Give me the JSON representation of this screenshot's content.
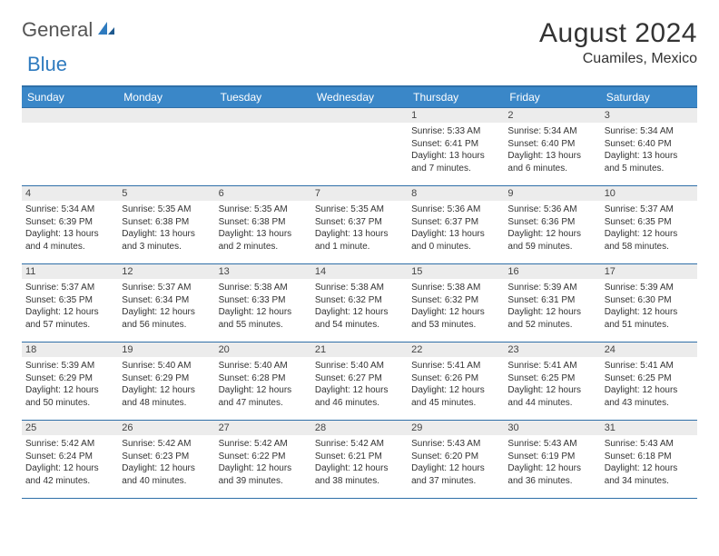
{
  "brand": {
    "part1": "General",
    "part2": "Blue"
  },
  "title": "August 2024",
  "location": "Cuamiles, Mexico",
  "colors": {
    "header_bg": "#3a87c8",
    "header_border": "#2f6fa8",
    "daynum_bg": "#ececec",
    "text": "#333333",
    "brand_blue": "#2f7bbf"
  },
  "fonts": {
    "title_size_pt": 22,
    "location_size_pt": 12,
    "header_size_pt": 9,
    "cell_size_pt": 7.5
  },
  "day_headers": [
    "Sunday",
    "Monday",
    "Tuesday",
    "Wednesday",
    "Thursday",
    "Friday",
    "Saturday"
  ],
  "weeks": [
    [
      {
        "n": "",
        "sr": "",
        "ss": "",
        "dl": ""
      },
      {
        "n": "",
        "sr": "",
        "ss": "",
        "dl": ""
      },
      {
        "n": "",
        "sr": "",
        "ss": "",
        "dl": ""
      },
      {
        "n": "",
        "sr": "",
        "ss": "",
        "dl": ""
      },
      {
        "n": "1",
        "sr": "Sunrise: 5:33 AM",
        "ss": "Sunset: 6:41 PM",
        "dl": "Daylight: 13 hours and 7 minutes."
      },
      {
        "n": "2",
        "sr": "Sunrise: 5:34 AM",
        "ss": "Sunset: 6:40 PM",
        "dl": "Daylight: 13 hours and 6 minutes."
      },
      {
        "n": "3",
        "sr": "Sunrise: 5:34 AM",
        "ss": "Sunset: 6:40 PM",
        "dl": "Daylight: 13 hours and 5 minutes."
      }
    ],
    [
      {
        "n": "4",
        "sr": "Sunrise: 5:34 AM",
        "ss": "Sunset: 6:39 PM",
        "dl": "Daylight: 13 hours and 4 minutes."
      },
      {
        "n": "5",
        "sr": "Sunrise: 5:35 AM",
        "ss": "Sunset: 6:38 PM",
        "dl": "Daylight: 13 hours and 3 minutes."
      },
      {
        "n": "6",
        "sr": "Sunrise: 5:35 AM",
        "ss": "Sunset: 6:38 PM",
        "dl": "Daylight: 13 hours and 2 minutes."
      },
      {
        "n": "7",
        "sr": "Sunrise: 5:35 AM",
        "ss": "Sunset: 6:37 PM",
        "dl": "Daylight: 13 hours and 1 minute."
      },
      {
        "n": "8",
        "sr": "Sunrise: 5:36 AM",
        "ss": "Sunset: 6:37 PM",
        "dl": "Daylight: 13 hours and 0 minutes."
      },
      {
        "n": "9",
        "sr": "Sunrise: 5:36 AM",
        "ss": "Sunset: 6:36 PM",
        "dl": "Daylight: 12 hours and 59 minutes."
      },
      {
        "n": "10",
        "sr": "Sunrise: 5:37 AM",
        "ss": "Sunset: 6:35 PM",
        "dl": "Daylight: 12 hours and 58 minutes."
      }
    ],
    [
      {
        "n": "11",
        "sr": "Sunrise: 5:37 AM",
        "ss": "Sunset: 6:35 PM",
        "dl": "Daylight: 12 hours and 57 minutes."
      },
      {
        "n": "12",
        "sr": "Sunrise: 5:37 AM",
        "ss": "Sunset: 6:34 PM",
        "dl": "Daylight: 12 hours and 56 minutes."
      },
      {
        "n": "13",
        "sr": "Sunrise: 5:38 AM",
        "ss": "Sunset: 6:33 PM",
        "dl": "Daylight: 12 hours and 55 minutes."
      },
      {
        "n": "14",
        "sr": "Sunrise: 5:38 AM",
        "ss": "Sunset: 6:32 PM",
        "dl": "Daylight: 12 hours and 54 minutes."
      },
      {
        "n": "15",
        "sr": "Sunrise: 5:38 AM",
        "ss": "Sunset: 6:32 PM",
        "dl": "Daylight: 12 hours and 53 minutes."
      },
      {
        "n": "16",
        "sr": "Sunrise: 5:39 AM",
        "ss": "Sunset: 6:31 PM",
        "dl": "Daylight: 12 hours and 52 minutes."
      },
      {
        "n": "17",
        "sr": "Sunrise: 5:39 AM",
        "ss": "Sunset: 6:30 PM",
        "dl": "Daylight: 12 hours and 51 minutes."
      }
    ],
    [
      {
        "n": "18",
        "sr": "Sunrise: 5:39 AM",
        "ss": "Sunset: 6:29 PM",
        "dl": "Daylight: 12 hours and 50 minutes."
      },
      {
        "n": "19",
        "sr": "Sunrise: 5:40 AM",
        "ss": "Sunset: 6:29 PM",
        "dl": "Daylight: 12 hours and 48 minutes."
      },
      {
        "n": "20",
        "sr": "Sunrise: 5:40 AM",
        "ss": "Sunset: 6:28 PM",
        "dl": "Daylight: 12 hours and 47 minutes."
      },
      {
        "n": "21",
        "sr": "Sunrise: 5:40 AM",
        "ss": "Sunset: 6:27 PM",
        "dl": "Daylight: 12 hours and 46 minutes."
      },
      {
        "n": "22",
        "sr": "Sunrise: 5:41 AM",
        "ss": "Sunset: 6:26 PM",
        "dl": "Daylight: 12 hours and 45 minutes."
      },
      {
        "n": "23",
        "sr": "Sunrise: 5:41 AM",
        "ss": "Sunset: 6:25 PM",
        "dl": "Daylight: 12 hours and 44 minutes."
      },
      {
        "n": "24",
        "sr": "Sunrise: 5:41 AM",
        "ss": "Sunset: 6:25 PM",
        "dl": "Daylight: 12 hours and 43 minutes."
      }
    ],
    [
      {
        "n": "25",
        "sr": "Sunrise: 5:42 AM",
        "ss": "Sunset: 6:24 PM",
        "dl": "Daylight: 12 hours and 42 minutes."
      },
      {
        "n": "26",
        "sr": "Sunrise: 5:42 AM",
        "ss": "Sunset: 6:23 PM",
        "dl": "Daylight: 12 hours and 40 minutes."
      },
      {
        "n": "27",
        "sr": "Sunrise: 5:42 AM",
        "ss": "Sunset: 6:22 PM",
        "dl": "Daylight: 12 hours and 39 minutes."
      },
      {
        "n": "28",
        "sr": "Sunrise: 5:42 AM",
        "ss": "Sunset: 6:21 PM",
        "dl": "Daylight: 12 hours and 38 minutes."
      },
      {
        "n": "29",
        "sr": "Sunrise: 5:43 AM",
        "ss": "Sunset: 6:20 PM",
        "dl": "Daylight: 12 hours and 37 minutes."
      },
      {
        "n": "30",
        "sr": "Sunrise: 5:43 AM",
        "ss": "Sunset: 6:19 PM",
        "dl": "Daylight: 12 hours and 36 minutes."
      },
      {
        "n": "31",
        "sr": "Sunrise: 5:43 AM",
        "ss": "Sunset: 6:18 PM",
        "dl": "Daylight: 12 hours and 34 minutes."
      }
    ]
  ]
}
